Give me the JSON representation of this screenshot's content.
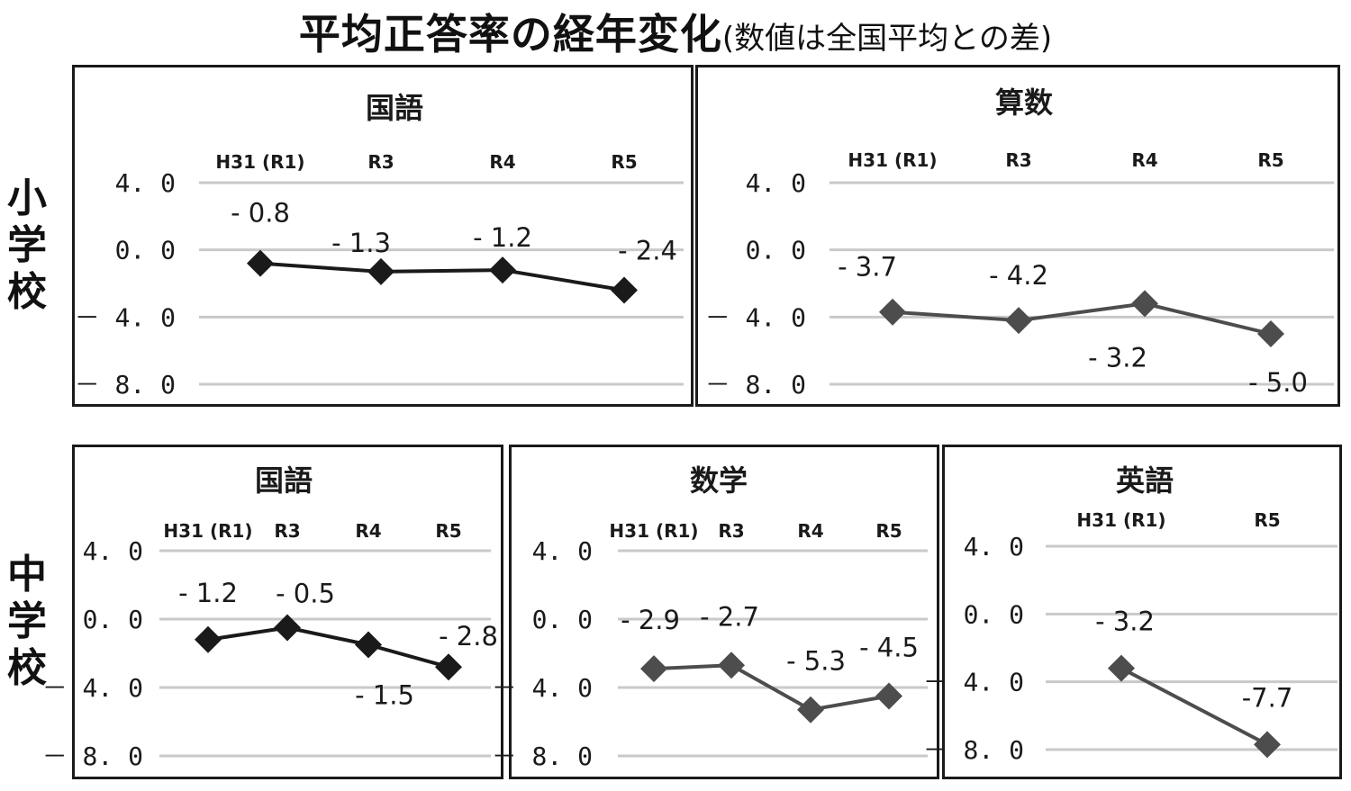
{
  "header": {
    "title_main": "平均正答率の経年変化",
    "title_sub": "(数値は全国平均との差)"
  },
  "rows": {
    "elementary": "小学校",
    "middle": "中学校"
  },
  "colors": {
    "dark_series": "#1a1a1a",
    "gray_series": "#4d4d4d",
    "grid": "#c9c9c9",
    "frame": "#1a1a1a"
  },
  "chart_data": [
    {
      "id": "elem-japanese",
      "type": "line",
      "group": "小学校",
      "title": "国語",
      "categories": [
        "H31 (R1)",
        "R3",
        "R4",
        "R5"
      ],
      "values": [
        -0.8,
        -1.3,
        -1.2,
        -2.4
      ],
      "value_labels": [
        "- 0.8",
        "- 1.3",
        "- 1.2",
        "- 2.4"
      ],
      "yticks": [
        "4. 0",
        "0. 0",
        "－ 4. 0",
        "－ 8. 0"
      ],
      "ylim": [
        -8,
        4
      ],
      "grid": true,
      "color": "#1a1a1a",
      "marker": "diamond"
    },
    {
      "id": "elem-math",
      "type": "line",
      "group": "小学校",
      "title": "算数",
      "categories": [
        "H31 (R1)",
        "R3",
        "R4",
        "R5"
      ],
      "values": [
        -3.7,
        -4.2,
        -3.2,
        -5.0
      ],
      "value_labels": [
        "- 3.7",
        "- 4.2",
        "- 3.2",
        "- 5.0"
      ],
      "yticks": [
        "4. 0",
        "0. 0",
        "－ 4. 0",
        "－ 8. 0"
      ],
      "ylim": [
        -8,
        4
      ],
      "grid": true,
      "color": "#4d4d4d",
      "marker": "diamond"
    },
    {
      "id": "middle-japanese",
      "type": "line",
      "group": "中学校",
      "title": "国語",
      "categories": [
        "H31 (R1)",
        "R3",
        "R4",
        "R5"
      ],
      "values": [
        -1.2,
        -0.5,
        -1.5,
        -2.8
      ],
      "value_labels": [
        "- 1.2",
        "- 0.5",
        "- 1.5",
        "- 2.8"
      ],
      "yticks": [
        "4. 0",
        "0. 0",
        "－ 4. 0",
        "－ 8. 0"
      ],
      "ylim": [
        -8,
        4
      ],
      "grid": true,
      "color": "#1a1a1a",
      "marker": "diamond"
    },
    {
      "id": "middle-math",
      "type": "line",
      "group": "中学校",
      "title": "数学",
      "categories": [
        "H31 (R1)",
        "R3",
        "R4",
        "R5"
      ],
      "values": [
        -2.9,
        -2.7,
        -5.3,
        -4.5
      ],
      "value_labels": [
        "- 2.9",
        "- 2.7",
        "- 5.3",
        "- 4.5"
      ],
      "yticks": [
        "4. 0",
        "0. 0",
        "－ 4. 0",
        "－ 8. 0"
      ],
      "ylim": [
        -8,
        4
      ],
      "grid": true,
      "color": "#4d4d4d",
      "marker": "diamond"
    },
    {
      "id": "middle-english",
      "type": "line",
      "group": "中学校",
      "title": "英語",
      "categories": [
        "H31 (R1)",
        "R5"
      ],
      "values": [
        -3.2,
        -7.7
      ],
      "value_labels": [
        "- 3.2",
        "-7.7"
      ],
      "yticks": [
        "4. 0",
        "0. 0",
        "－ 4. 0",
        "－ 8. 0"
      ],
      "ylim": [
        -8,
        4
      ],
      "grid": true,
      "color": "#4d4d4d",
      "marker": "diamond"
    }
  ]
}
